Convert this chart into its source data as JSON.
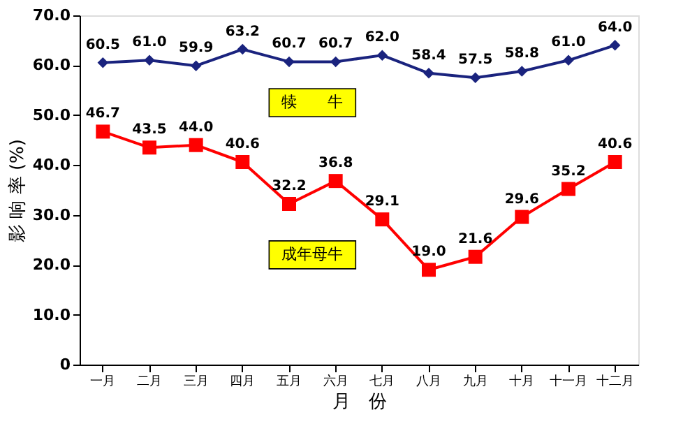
{
  "chart_data": {
    "type": "line",
    "xlabel": "月　份",
    "ylabel": "影 响 率 (%)",
    "categories": [
      "一月",
      "二月",
      "三月",
      "四月",
      "五月",
      "六月",
      "七月",
      "八月",
      "九月",
      "十月",
      "十一月",
      "十二月"
    ],
    "series": [
      {
        "name": "犊　　牛",
        "color": "#1a237e",
        "marker": "diamond",
        "values": [
          60.5,
          61.0,
          59.9,
          63.2,
          60.7,
          60.7,
          62.0,
          58.4,
          57.5,
          58.8,
          61.0,
          64.0
        ],
        "value_labels": [
          "60.5",
          "61.0",
          "59.9",
          "63.2",
          "60.7",
          "60.7",
          "62.0",
          "58.4",
          "57.5",
          "58.8",
          "61.0",
          "64.0"
        ]
      },
      {
        "name": "成年母牛",
        "color": "#ff0000",
        "marker": "square",
        "values": [
          46.7,
          43.5,
          44.0,
          40.6,
          32.2,
          36.8,
          29.1,
          19.0,
          21.6,
          29.6,
          35.2,
          40.6
        ],
        "value_labels": [
          "46.7",
          "43.5",
          "44.0",
          "40.6",
          "32.2",
          "36.8",
          "29.1",
          "19.0",
          "21.6",
          "29.6",
          "35.2",
          "40.6"
        ]
      }
    ],
    "ylim": [
      0,
      70
    ],
    "yticks": [
      0,
      {
        "value": 10,
        "label": "10.0"
      },
      {
        "value": 20,
        "label": "20.0"
      },
      {
        "value": 30,
        "label": "30.0"
      },
      {
        "value": 40,
        "label": "40.0"
      },
      {
        "value": 50,
        "label": "50.0"
      },
      {
        "value": 60,
        "label": "60.0"
      },
      {
        "value": 70,
        "label": "70.0"
      }
    ]
  }
}
